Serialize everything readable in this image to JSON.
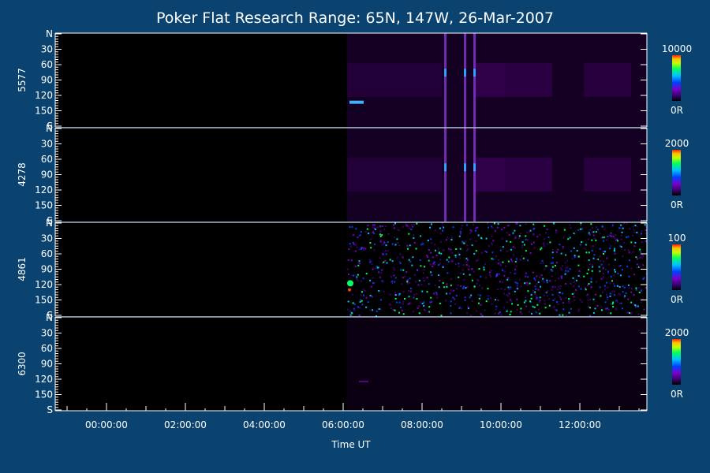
{
  "chart_data": {
    "type": "heatmap",
    "title": "Poker Flat Research Range: 65N, 147W, 26-Mar-2007",
    "xlabel": "Time UT",
    "x_ticks": [
      "00:00:00",
      "02:00:00",
      "04:00:00",
      "06:00:00",
      "08:00:00",
      "10:00:00",
      "12:00:00"
    ],
    "x_range_hours": [
      -1.3,
      13.7
    ],
    "data_start_hour": 6.1,
    "y_ticks": [
      "N",
      "30",
      "60",
      "90",
      "120",
      "150",
      "S"
    ],
    "y_range": [
      0,
      180
    ],
    "panels": [
      {
        "label": "5577",
        "scale_max": "10000",
        "scale_min": "0R",
        "intensity": "medium"
      },
      {
        "label": "4278",
        "scale_max": "2000",
        "scale_min": "0R",
        "intensity": "medium"
      },
      {
        "label": "4861",
        "scale_max": "100",
        "scale_min": "0R",
        "intensity": "noisy"
      },
      {
        "label": "6300",
        "scale_max": "2000",
        "scale_min": "0R",
        "intensity": "faint"
      }
    ],
    "colormap": [
      "#000000",
      "#3a006e",
      "#7a00c8",
      "#0040ff",
      "#00c0ff",
      "#00ff60",
      "#c0ff00",
      "#ffc000",
      "#ff2000"
    ]
  }
}
